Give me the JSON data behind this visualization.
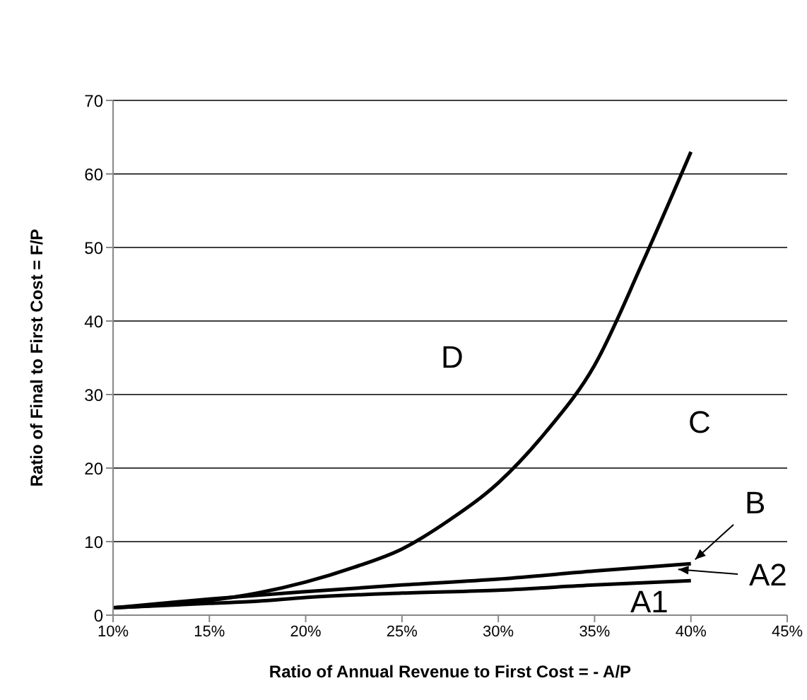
{
  "chart_data": {
    "type": "line",
    "xlabel": "Ratio of Annual Revenue to First Cost = - A/P",
    "ylabel": "Ratio of Final to First Cost = F/P",
    "xlim": [
      10,
      45
    ],
    "xticks": [
      {
        "value": 10,
        "label": "10%"
      },
      {
        "value": 15,
        "label": "15%"
      },
      {
        "value": 20,
        "label": "20%"
      },
      {
        "value": 25,
        "label": "25%"
      },
      {
        "value": 30,
        "label": "30%"
      },
      {
        "value": 35,
        "label": "35%"
      },
      {
        "value": 40,
        "label": "40%"
      },
      {
        "value": 45,
        "label": "45%"
      }
    ],
    "ylim": [
      0,
      70
    ],
    "yticks": [
      0,
      10,
      20,
      30,
      40,
      50,
      60,
      70
    ],
    "grid": "y",
    "marker": "none",
    "line_style": "solid",
    "series": [
      {
        "color": "#000000",
        "x": [
          10,
          12.5,
          15,
          17.5,
          20,
          22.5,
          25,
          27.5,
          30,
          32.5,
          35,
          37.5,
          40
        ],
        "values": [
          1,
          1.4,
          2,
          3,
          4.5,
          6.5,
          9,
          13,
          18,
          25,
          34,
          48,
          63
        ]
      },
      {
        "color": "#000000",
        "x": [
          10,
          15,
          20,
          25,
          30,
          35,
          40
        ],
        "values": [
          1,
          2.2,
          3.2,
          4.1,
          4.9,
          6,
          7
        ]
      },
      {
        "color": "#000000",
        "x": [
          10,
          15,
          17.5,
          20,
          25,
          30,
          35,
          40
        ],
        "values": [
          1,
          1.6,
          1.9,
          2.4,
          3,
          3.4,
          4.1,
          4.7
        ]
      }
    ],
    "annotations": [
      "D",
      "C",
      "B",
      "A2",
      "A1"
    ]
  }
}
